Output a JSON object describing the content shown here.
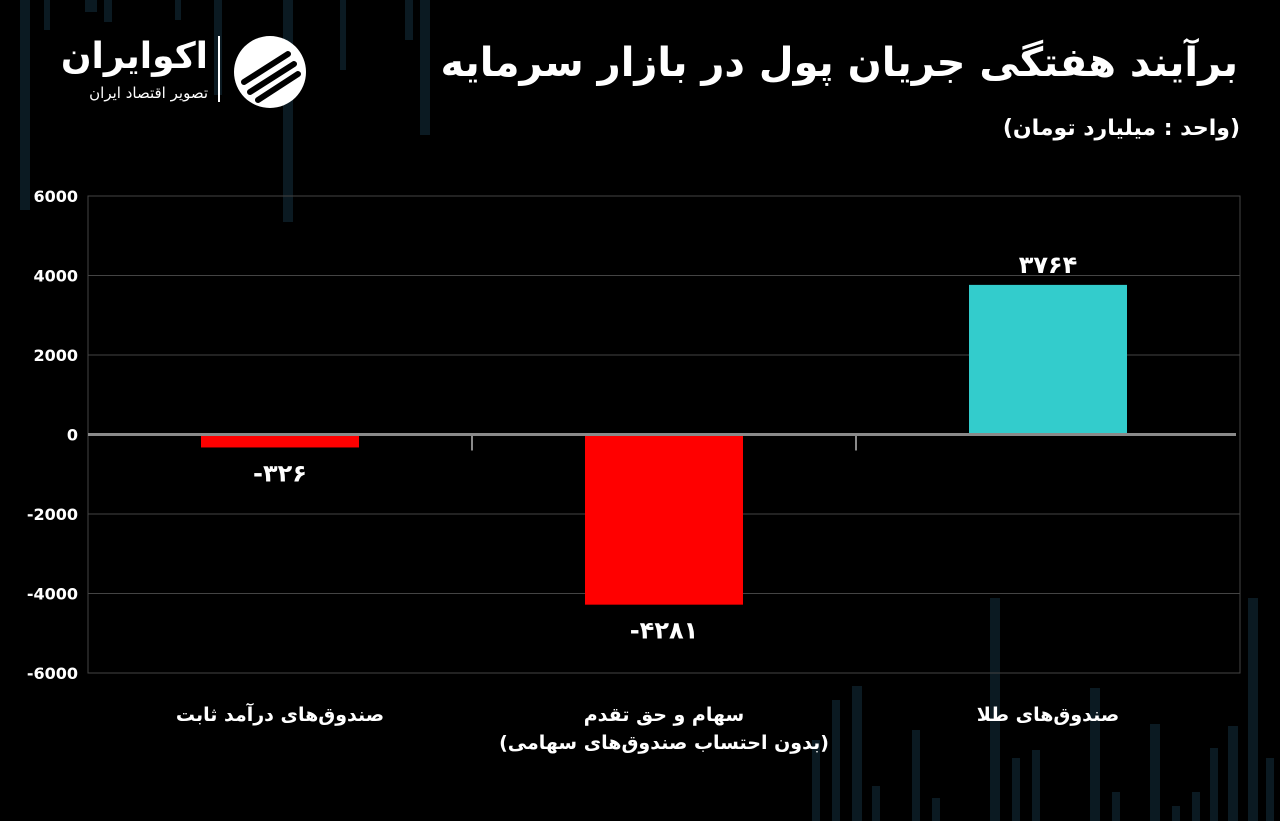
{
  "header": {
    "title": "برآیند هفتگی جریان پول در بازار سرمایه",
    "unit": "(واحد : میلیارد تومان)"
  },
  "logo": {
    "name": "اکوایران",
    "subtitle": "تصویر اقتصاد ایران",
    "icon": "ecoiran-logo-icon"
  },
  "colors": {
    "background": "#000000",
    "negative": "#ff0000",
    "positive": "#33cccc",
    "grid": "#444444",
    "text": "#ffffff"
  },
  "chart_data": {
    "type": "bar",
    "categories": [
      [
        "صندوق‌های درآمد ثابت"
      ],
      [
        "سهام و حق تقدم",
        "(بدون احتساب صندوق‌های سهامی)"
      ],
      [
        "صندوق‌های طلا"
      ]
    ],
    "values": [
      -326,
      -4281,
      3764
    ],
    "value_labels": [
      "-۳۲۶",
      "-۴۲۸۱",
      "۳۷۶۴"
    ],
    "y_ticks": [
      6000,
      4000,
      2000,
      0,
      -2000,
      -4000,
      -6000
    ],
    "y_tick_labels": [
      "6000",
      "4000",
      "2000",
      "0",
      "-2000",
      "-4000",
      "-6000"
    ],
    "ylim": [
      -6000,
      6000
    ],
    "grid": true,
    "bar_colors": [
      "#ff0000",
      "#ff0000",
      "#33cccc"
    ]
  }
}
